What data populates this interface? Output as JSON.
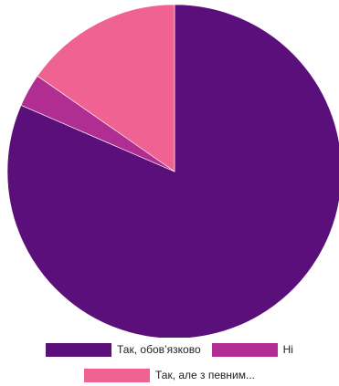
{
  "chart_data": {
    "type": "pie",
    "title": "",
    "series": [
      {
        "name": "",
        "values": [
          {
            "label": "Так, обов’язково",
            "value": 81.5,
            "color": "#5b0f7a"
          },
          {
            "label": "Ні",
            "value": 3.2,
            "color": "#b02e91"
          },
          {
            "label": "Так, але з певним...",
            "value": 15.3,
            "color": "#f06292"
          }
        ]
      }
    ],
    "start_angle_deg": 0,
    "direction": "clockwise",
    "legend_position": "bottom"
  }
}
